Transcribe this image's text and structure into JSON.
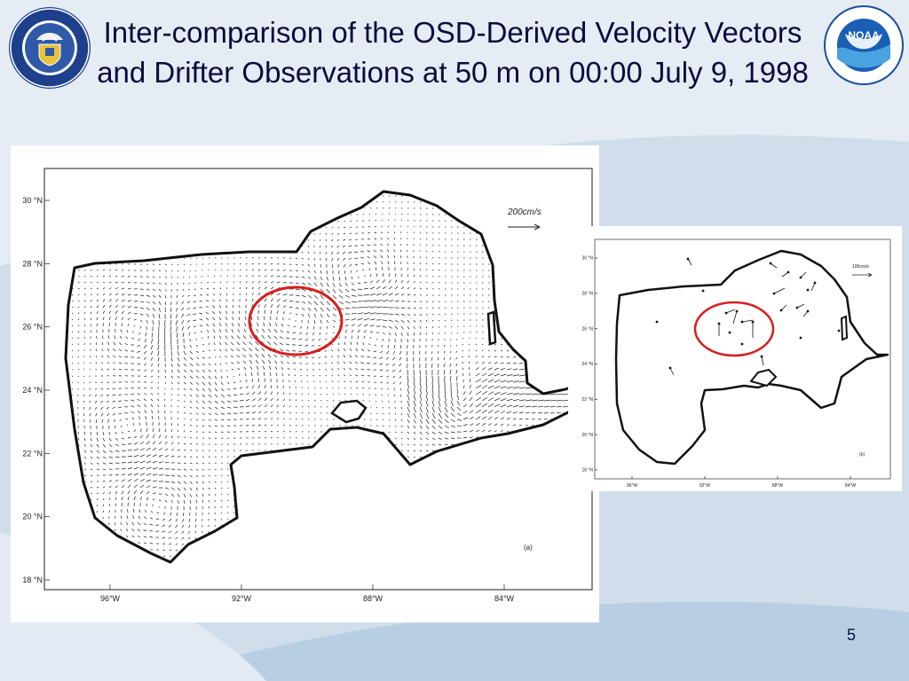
{
  "slide": {
    "title": "Inter-comparison of the OSD-Derived Velocity Vectors and Drifter Observations at 50 m on 00:00 July 9, 1998",
    "page_number": "5"
  },
  "logos": {
    "left": {
      "icon": "department-of-commerce-seal-icon",
      "text": "DEPARTMENT OF COMMERCE · UNITED STATES OF AMERICA"
    },
    "right": {
      "icon": "noaa-logo-icon",
      "text": "NOAA",
      "ring_text": "NATIONAL OCEANIC AND ATMOSPHERIC ADMINISTRATION · U.S. DEPARTMENT OF COMMERCE"
    }
  },
  "figure_a": {
    "panel_label": "(a)",
    "scale_label": "200cm/s",
    "y_ticks": [
      "30 °N",
      "28 °N",
      "26 °N",
      "24 °N",
      "22 °N",
      "20 °N",
      "18 °N"
    ],
    "x_ticks": [
      "96°W",
      "92°W",
      "88°W",
      "84°W"
    ]
  },
  "figure_b": {
    "panel_label": "(b)",
    "scale_label": "100cm/s",
    "y_ticks": [
      "30 °N",
      "28 °N",
      "26 °N",
      "24 °N",
      "22 °N",
      "20 °N",
      "18 °N"
    ],
    "x_ticks": [
      "96°W",
      "92°W",
      "88°W",
      "84°W"
    ]
  },
  "colors": {
    "title_text": "#0b0b3d",
    "highlight_circle": "#d81e1e",
    "background_blue": "#d0ddea"
  }
}
